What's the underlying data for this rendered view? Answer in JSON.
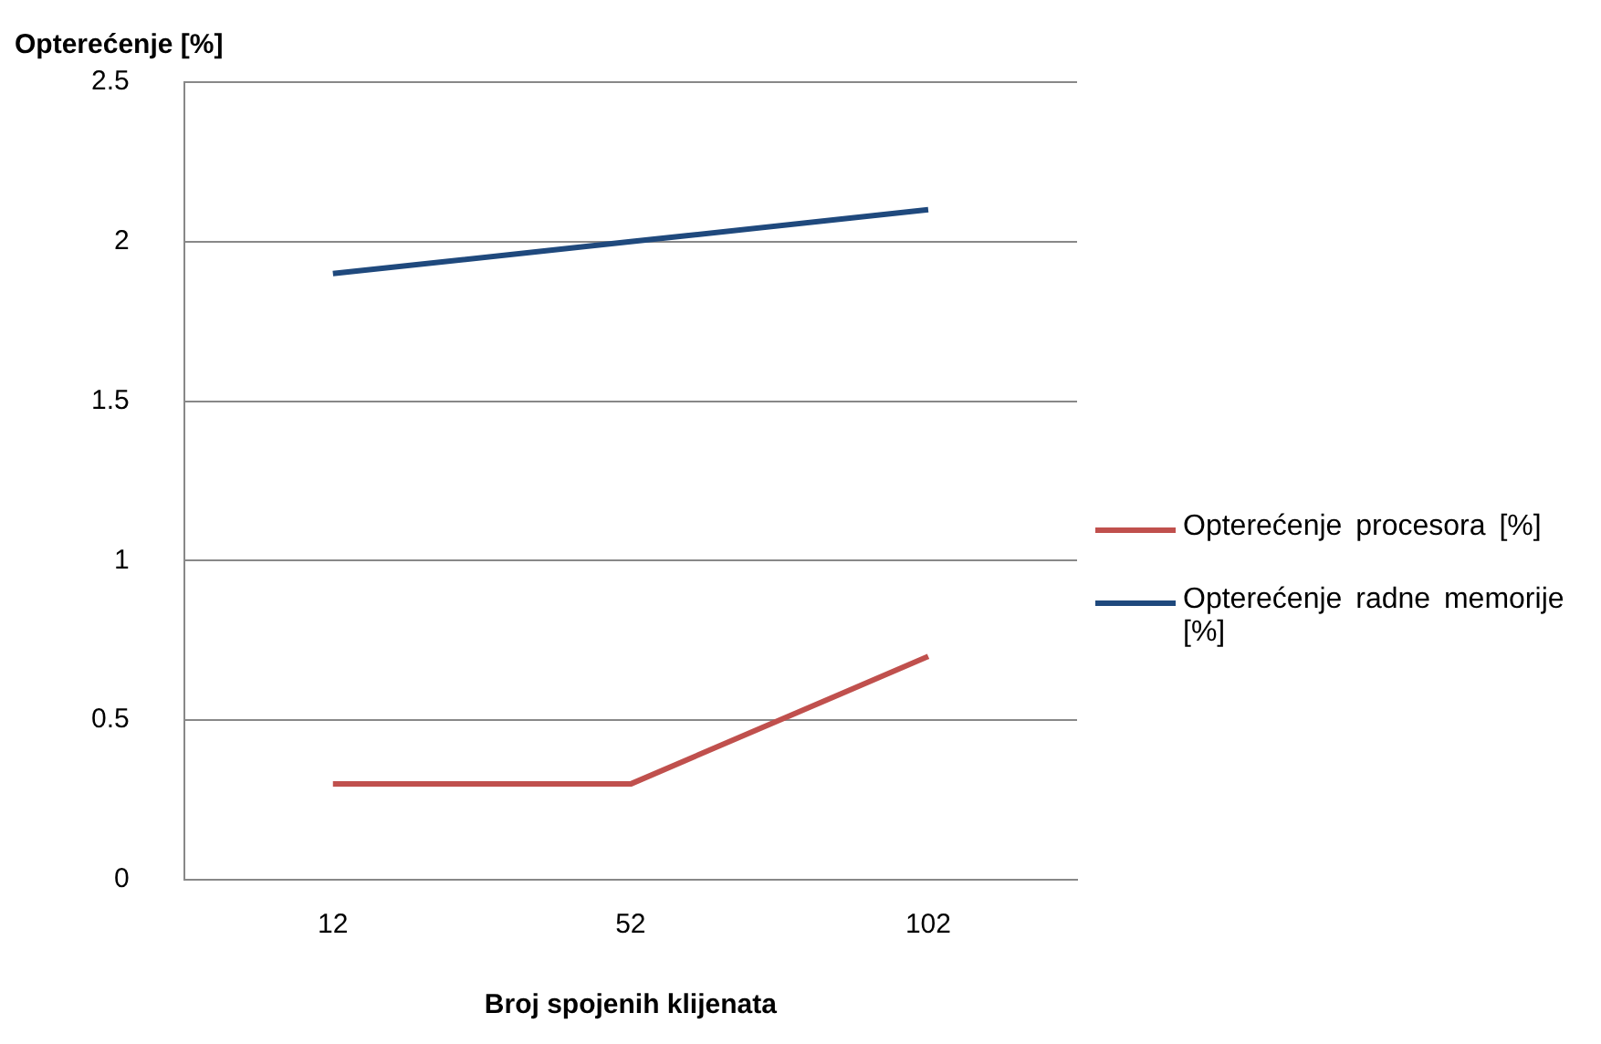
{
  "chart_data": {
    "type": "line",
    "ylabel": "Opterećenje [%]",
    "xlabel": "Broj spojenih klijenata",
    "categories": [
      "12",
      "52",
      "102"
    ],
    "series": [
      {
        "name": "Opterećenje procesora [%]",
        "color": "#c0504d",
        "values": [
          0.3,
          0.3,
          0.7
        ]
      },
      {
        "name": "Opterećenje radne memorije [%]",
        "color": "#1f497d",
        "values": [
          1.9,
          2.0,
          2.1
        ]
      }
    ],
    "ylim": [
      0,
      2.5
    ],
    "yticks": [
      0,
      0.5,
      1,
      1.5,
      2,
      2.5
    ],
    "grid": "y",
    "legend": "right",
    "marker": "none",
    "line_style": "solid"
  }
}
